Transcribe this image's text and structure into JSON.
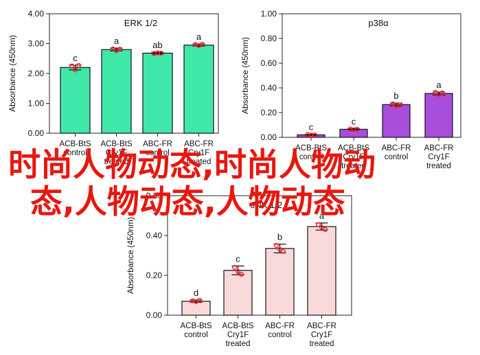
{
  "chart_data": [
    {
      "type": "bar",
      "title": "ERK 1/2",
      "ylabel": "Absorbance (450nm)",
      "ylim": [
        0,
        4
      ],
      "yticks": [
        "0.00",
        "1.00",
        "2.00",
        "3.00",
        "4.00"
      ],
      "categories": [
        [
          "ACB-BtS",
          "control"
        ],
        [
          "ACB-BtS",
          "Cry1F",
          "treated"
        ],
        [
          "ABC-FR",
          "control"
        ],
        [
          "ABC-FR",
          "Cry1F",
          "treated"
        ]
      ],
      "values": [
        2.2,
        2.8,
        2.68,
        2.95
      ],
      "errors": [
        0.08,
        0.05,
        0.03,
        0.04
      ],
      "points": [
        [
          2.25,
          2.12,
          2.27
        ],
        [
          2.82,
          2.76,
          2.81
        ],
        [
          2.67,
          2.69,
          2.68
        ],
        [
          2.97,
          2.93,
          2.98
        ]
      ],
      "letters": [
        "c",
        "a",
        "ab",
        "a"
      ],
      "bar_color": "#3fe8a8",
      "point_color": "#ff1a1a"
    },
    {
      "type": "bar",
      "title": "p38α",
      "ylabel": "Absorbance (450nm)",
      "ylim": [
        0,
        1
      ],
      "yticks": [
        "0.00",
        "0.20",
        "0.40",
        "0.60",
        "0.80",
        "1.00"
      ],
      "categories": [
        [
          "ACB-BtS",
          "control"
        ],
        [
          "ACB-BtS",
          "Cry1F",
          "treated"
        ],
        [
          "ABC-FR",
          "control"
        ],
        [
          "ABC-FR",
          "Cry1F",
          "treated"
        ]
      ],
      "values": [
        0.02,
        0.065,
        0.265,
        0.355
      ],
      "errors": [
        0.004,
        0.005,
        0.012,
        0.012
      ],
      "points": [
        [
          0.022,
          0.018,
          0.02
        ],
        [
          0.068,
          0.062,
          0.066
        ],
        [
          0.27,
          0.255,
          0.262
        ],
        [
          0.365,
          0.345,
          0.36
        ]
      ],
      "letters": [
        "c",
        "c",
        "b",
        "a"
      ],
      "bar_color": "#a94ddb",
      "point_color": "#ff1a1a"
    },
    {
      "type": "bar",
      "title": "JNK 1/2",
      "ylabel": "Absorbance (450nm)",
      "ylim": [
        0,
        0.6
      ],
      "yticks": [
        "0.00",
        "0.20",
        "0.40",
        "0.60"
      ],
      "categories": [
        [
          "ACB-BtS",
          "control"
        ],
        [
          "ACB-BtS",
          "Cry1F",
          "treated"
        ],
        [
          "ABC-FR",
          "control"
        ],
        [
          "ABC-FR",
          "Cry1F",
          "treated"
        ]
      ],
      "values": [
        0.07,
        0.225,
        0.335,
        0.445
      ],
      "errors": [
        0.006,
        0.022,
        0.022,
        0.018
      ],
      "points": [
        [
          0.072,
          0.068,
          0.075
        ],
        [
          0.24,
          0.22,
          0.205
        ],
        [
          0.35,
          0.33,
          0.32
        ],
        [
          0.455,
          0.44,
          0.43
        ]
      ],
      "letters": [
        "d",
        "c",
        "b",
        "a"
      ],
      "bar_color": "#f8dada",
      "point_color": "#ff1a1a"
    }
  ],
  "watermark": {
    "line1": "时尚人物动态,时尚人物动",
    "line2": "态,人物动态,人物动态",
    "color": "#e8170f"
  }
}
